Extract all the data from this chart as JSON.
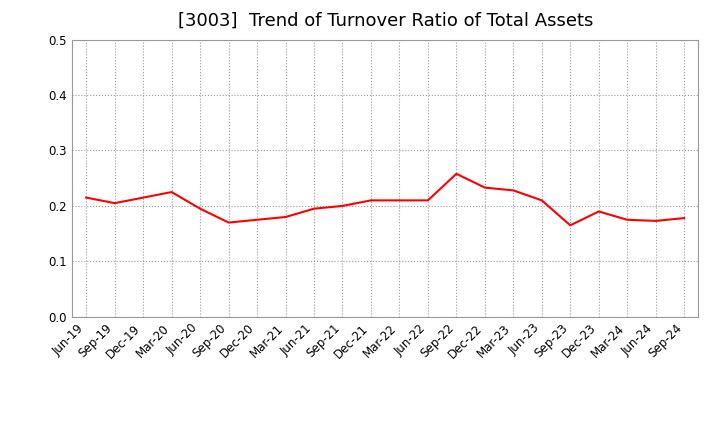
{
  "title": "[3003]  Trend of Turnover Ratio of Total Assets",
  "labels": [
    "Jun-19",
    "Sep-19",
    "Dec-19",
    "Mar-20",
    "Jun-20",
    "Sep-20",
    "Dec-20",
    "Mar-21",
    "Jun-21",
    "Sep-21",
    "Dec-21",
    "Mar-22",
    "Jun-22",
    "Sep-22",
    "Dec-22",
    "Mar-23",
    "Jun-23",
    "Sep-23",
    "Dec-23",
    "Mar-24",
    "Jun-24",
    "Sep-24"
  ],
  "values": [
    0.215,
    0.205,
    0.215,
    0.225,
    0.195,
    0.17,
    0.175,
    0.18,
    0.195,
    0.2,
    0.21,
    0.21,
    0.21,
    0.258,
    0.233,
    0.228,
    0.21,
    0.165,
    0.19,
    0.175,
    0.173,
    0.178
  ],
  "ylim": [
    0.0,
    0.5
  ],
  "yticks": [
    0.0,
    0.1,
    0.2,
    0.3,
    0.4,
    0.5
  ],
  "line_color": "#FF0000",
  "line_width": 1.5,
  "bg_color": "#FFFFFF",
  "grid_color": "#999999",
  "title_fontsize": 13,
  "tick_fontsize": 8.5,
  "xlabel_rotation": 45
}
